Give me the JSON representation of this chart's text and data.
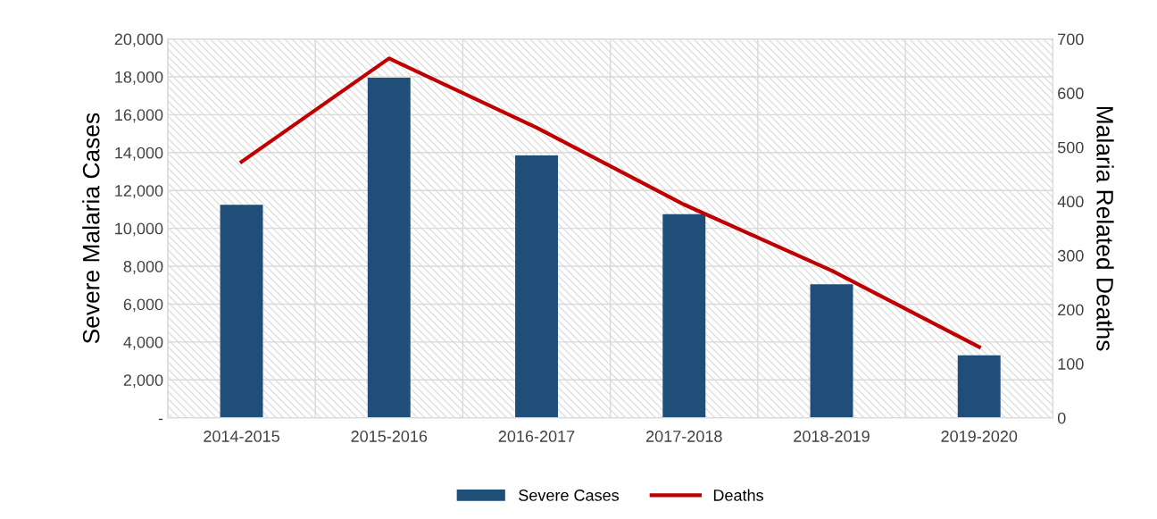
{
  "chart_data": {
    "type": "bar",
    "categories": [
      "2014-2015",
      "2015-2016",
      "2016-2017",
      "2017-2018",
      "2018-2019",
      "2019-2020"
    ],
    "series": [
      {
        "name": "Severe Cases",
        "color": "#1f4e79",
        "values": [
          11250,
          17950,
          13850,
          10750,
          7050,
          3300
        ]
      },
      {
        "name": "Deaths",
        "type": "line",
        "axis": "y2",
        "color": "#c00000",
        "values": [
          473,
          664,
          536,
          394,
          272,
          131
        ]
      }
    ],
    "ylabel": "Severe Malaria Cases",
    "y2label": "Malaria Related Deaths",
    "ylim": [
      0,
      20000
    ],
    "yticks": [
      {
        "value": 0,
        "label": "-"
      },
      {
        "value": 2000,
        "label": "2,000"
      },
      {
        "value": 4000,
        "label": "4,000"
      },
      {
        "value": 6000,
        "label": "6,000"
      },
      {
        "value": 8000,
        "label": "8,000"
      },
      {
        "value": 10000,
        "label": "10,000"
      },
      {
        "value": 12000,
        "label": "12,000"
      },
      {
        "value": 14000,
        "label": "14,000"
      },
      {
        "value": 16000,
        "label": "16,000"
      },
      {
        "value": 18000,
        "label": "18,000"
      },
      {
        "value": 20000,
        "label": "20,000"
      }
    ],
    "y2lim": [
      0,
      700
    ],
    "y2ticks": [
      0,
      100,
      200,
      300,
      400,
      500,
      600,
      700
    ],
    "grid": true,
    "legend": "bottom",
    "marker": "none",
    "line_style": "solid"
  }
}
